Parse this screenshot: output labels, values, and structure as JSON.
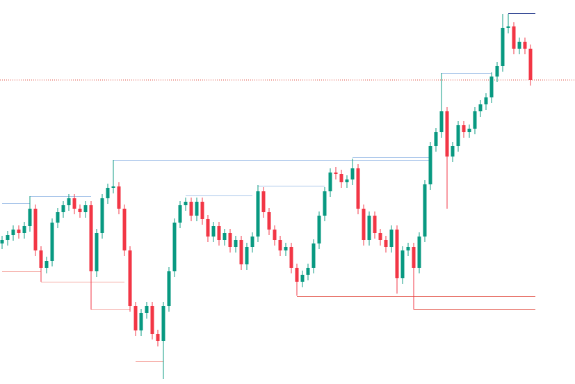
{
  "chart_data": {
    "type": "candlestick",
    "ylim": [
      0,
      552
    ],
    "up_color": "#089981",
    "down_color": "#f23645",
    "open": [
      202,
      207,
      214,
      222,
      217,
      227,
      252,
      192,
      167,
      177,
      232,
      247,
      257,
      267,
      252,
      247,
      257,
      162,
      217,
      267,
      282,
      284,
      252,
      192,
      112,
      77,
      102,
      112,
      72,
      62,
      112,
      162,
      232,
      257,
      262,
      242,
      262,
      237,
      212,
      227,
      207,
      217,
      197,
      207,
      172,
      197,
      212,
      277,
      247,
      222,
      207,
      192,
      197,
      167,
      147,
      157,
      167,
      202,
      242,
      277,
      304,
      302,
      290,
      294,
      310,
      252,
      207,
      242,
      217,
      207,
      197,
      222,
      152,
      192,
      197,
      167,
      212,
      287,
      342,
      362,
      392,
      327,
      342,
      372,
      362,
      367,
      392,
      402,
      412,
      442,
      457,
      512,
      514,
      482,
      492,
      482
    ],
    "high": [
      213,
      220,
      228,
      228,
      233,
      270,
      258,
      198,
      183,
      238,
      253,
      263,
      273,
      273,
      258,
      263,
      263,
      223,
      273,
      288,
      322,
      290,
      258,
      198,
      118,
      108,
      118,
      118,
      78,
      118,
      168,
      238,
      263,
      268,
      268,
      268,
      268,
      243,
      233,
      233,
      223,
      223,
      213,
      213,
      203,
      218,
      286,
      283,
      253,
      228,
      213,
      203,
      203,
      173,
      163,
      173,
      208,
      248,
      283,
      310,
      312,
      308,
      300,
      324,
      316,
      258,
      248,
      248,
      223,
      213,
      228,
      228,
      198,
      203,
      203,
      218,
      293,
      348,
      368,
      447,
      398,
      348,
      378,
      378,
      373,
      398,
      408,
      418,
      448,
      463,
      532,
      532,
      520,
      498,
      498,
      488
    ],
    "low": [
      194,
      199,
      206,
      209,
      209,
      219,
      184,
      147,
      159,
      169,
      224,
      239,
      249,
      244,
      239,
      239,
      107,
      154,
      209,
      259,
      274,
      244,
      184,
      104,
      69,
      69,
      94,
      64,
      54,
      7,
      104,
      154,
      224,
      249,
      234,
      234,
      229,
      204,
      204,
      199,
      199,
      189,
      189,
      164,
      164,
      189,
      204,
      239,
      214,
      199,
      184,
      184,
      159,
      127,
      139,
      149,
      159,
      194,
      234,
      269,
      294,
      282,
      282,
      286,
      244,
      199,
      199,
      209,
      199,
      189,
      189,
      130,
      144,
      184,
      107,
      159,
      204,
      279,
      334,
      354,
      252,
      319,
      334,
      354,
      354,
      359,
      384,
      394,
      404,
      434,
      449,
      504,
      474,
      474,
      474,
      429
    ],
    "close": [
      207,
      214,
      222,
      217,
      227,
      252,
      192,
      167,
      177,
      232,
      247,
      257,
      267,
      252,
      247,
      257,
      162,
      217,
      267,
      282,
      284,
      252,
      192,
      112,
      77,
      102,
      112,
      72,
      62,
      112,
      162,
      232,
      257,
      262,
      242,
      262,
      237,
      212,
      227,
      207,
      217,
      197,
      207,
      172,
      197,
      212,
      277,
      247,
      222,
      207,
      192,
      197,
      167,
      147,
      157,
      167,
      202,
      242,
      277,
      304,
      302,
      290,
      294,
      310,
      252,
      207,
      242,
      217,
      207,
      197,
      222,
      152,
      192,
      197,
      167,
      212,
      287,
      342,
      362,
      392,
      327,
      342,
      372,
      362,
      367,
      392,
      402,
      412,
      442,
      457,
      512,
      514,
      482,
      492,
      482,
      437
    ],
    "levels": [
      {
        "value": 260,
        "start": 0,
        "end": 5,
        "color": "#a9c6ea"
      },
      {
        "value": 270,
        "start": 5,
        "end": 16,
        "color": "#a9c6ea"
      },
      {
        "value": 322,
        "start": 20,
        "end": 77,
        "color": "#a9c6ea"
      },
      {
        "value": 271,
        "start": 33,
        "end": 45,
        "color": "#a9c6ea"
      },
      {
        "value": 285,
        "start": 46,
        "end": 58,
        "color": "#a9c6ea"
      },
      {
        "value": 326,
        "start": 63,
        "end": 77,
        "color": "#a9c6ea"
      },
      {
        "value": 447,
        "start": 79,
        "end": 88,
        "color": "#a9c6ea"
      },
      {
        "value": 533,
        "start": 91,
        "end": 96,
        "color": "#2a3f8f"
      },
      {
        "value": 162,
        "start": 0,
        "end": 7,
        "color": "#f5a8a2"
      },
      {
        "value": 147,
        "start": 7,
        "end": 22,
        "color": "#f5a8a2"
      },
      {
        "value": 108,
        "start": 16,
        "end": 23,
        "color": "#f5a8a2"
      },
      {
        "value": 33,
        "start": 24,
        "end": 29,
        "color": "#f5a8a2"
      },
      {
        "value": 126,
        "start": 53,
        "end": 96,
        "color": "#e0483c"
      },
      {
        "value": 108,
        "start": 74,
        "end": 96,
        "color": "#e0483c"
      }
    ],
    "last_price": 437,
    "last_price_color": "#e0483c"
  }
}
